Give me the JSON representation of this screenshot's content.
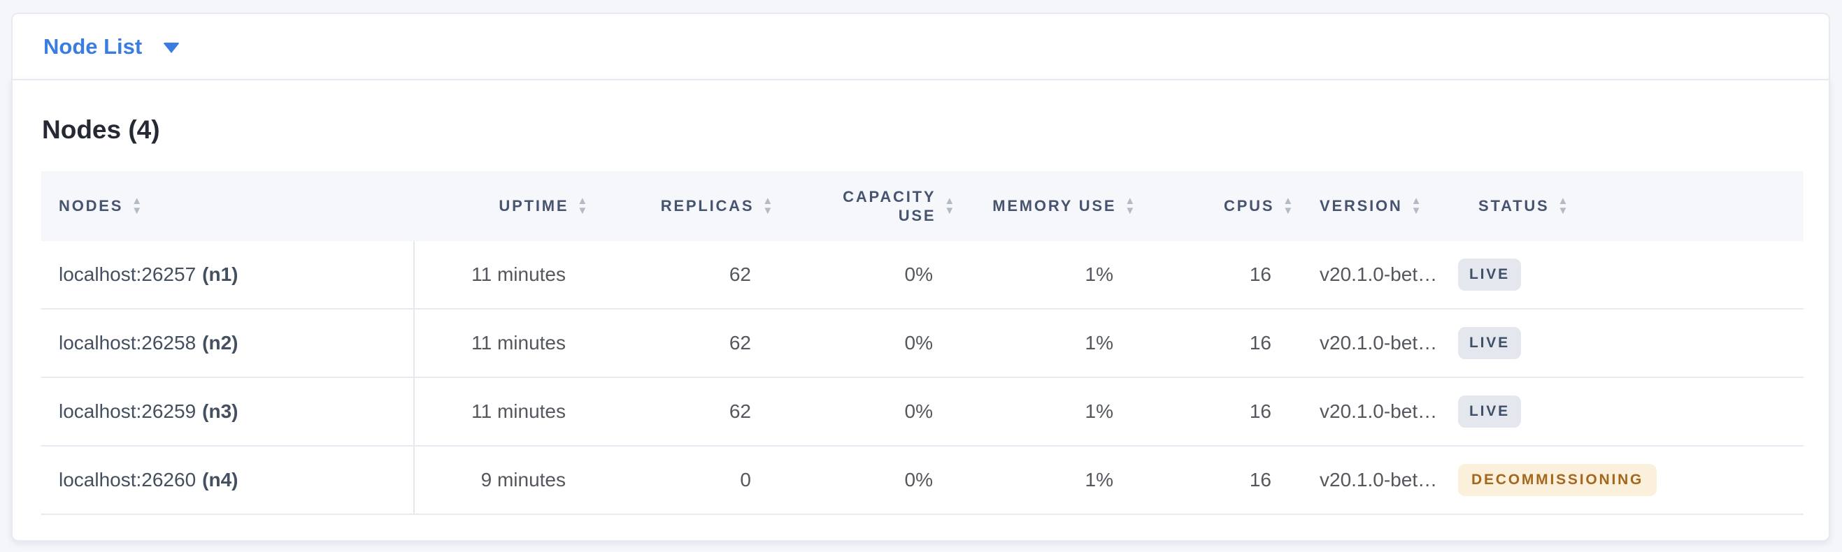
{
  "topbar": {
    "dropdown_label": "Node List"
  },
  "main": {
    "title": "Nodes (4)",
    "table": {
      "columns": [
        {
          "label": "NODES",
          "align": "left"
        },
        {
          "label": "UPTIME",
          "align": "right"
        },
        {
          "label": "REPLICAS",
          "align": "right"
        },
        {
          "label": "CAPACITY USE",
          "align": "right"
        },
        {
          "label": "MEMORY USE",
          "align": "right"
        },
        {
          "label": "CPUS",
          "align": "right"
        },
        {
          "label": "VERSION",
          "align": "left"
        },
        {
          "label": "STATUS",
          "align": "left"
        }
      ],
      "rows": [
        {
          "node": "localhost:26257",
          "node_id": "(n1)",
          "uptime": "11 minutes",
          "replicas": "62",
          "capacity_use": "0%",
          "memory_use": "1%",
          "cpus": "16",
          "version": "v20.1.0-bet…",
          "status": "LIVE",
          "status_variant": "live"
        },
        {
          "node": "localhost:26258",
          "node_id": "(n2)",
          "uptime": "11 minutes",
          "replicas": "62",
          "capacity_use": "0%",
          "memory_use": "1%",
          "cpus": "16",
          "version": "v20.1.0-bet…",
          "status": "LIVE",
          "status_variant": "live"
        },
        {
          "node": "localhost:26259",
          "node_id": "(n3)",
          "uptime": "11 minutes",
          "replicas": "62",
          "capacity_use": "0%",
          "memory_use": "1%",
          "cpus": "16",
          "version": "v20.1.0-bet…",
          "status": "LIVE",
          "status_variant": "live"
        },
        {
          "node": "localhost:26260",
          "node_id": "(n4)",
          "uptime": "9 minutes",
          "replicas": "0",
          "capacity_use": "0%",
          "memory_use": "1%",
          "cpus": "16",
          "version": "v20.1.0-bet…",
          "status": "DECOMMISSIONING",
          "status_variant": "decommissioning"
        }
      ]
    }
  },
  "colors": {
    "accent_blue": "#3B7CE1",
    "page_bg": "#F4F6FA",
    "header_text": "#465470",
    "live_badge_bg": "#E4E7EE",
    "live_badge_text": "#3E4F68",
    "decommissioning_badge_bg": "#FAF0DC",
    "decommissioning_badge_text": "#A5671E"
  }
}
